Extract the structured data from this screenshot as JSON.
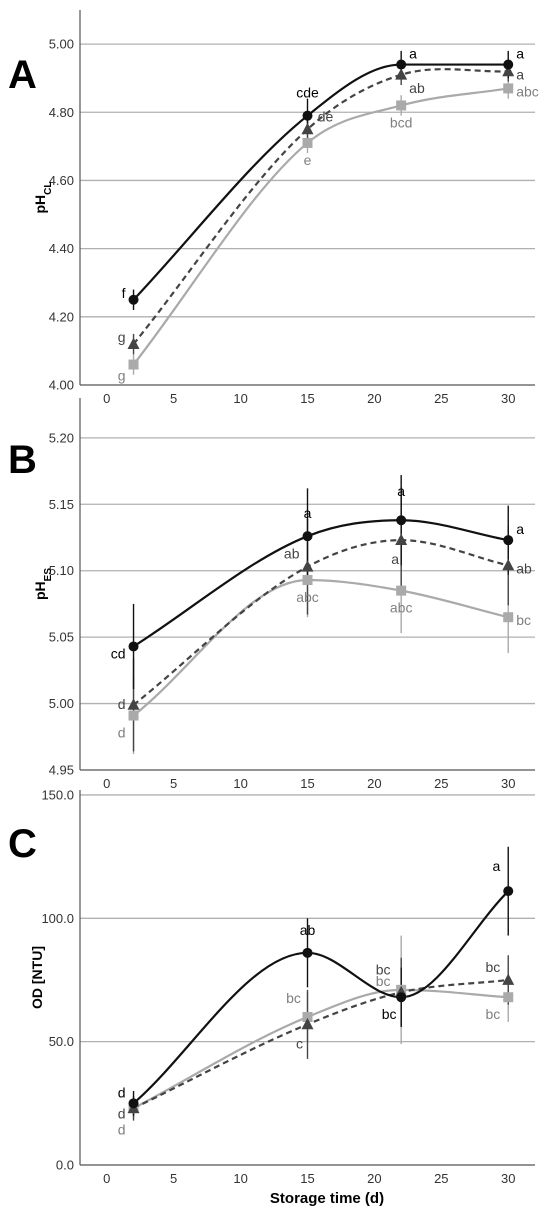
{
  "figure": {
    "xlabel": "Storage time (d)",
    "x_ticks": [
      "0",
      "5",
      "10",
      "15",
      "20",
      "25",
      "30"
    ]
  },
  "colors": {
    "series_circle": "#111111",
    "series_triangle": "#444444",
    "series_square": "#aaaaaa",
    "label_circle": "#000000",
    "label_triangle": "#444444",
    "label_square": "#808080",
    "gridline": "#b0b0b0"
  },
  "chart_data": [
    {
      "type": "line",
      "panel_label": "A",
      "ylabel": "pH",
      "ylabel_sub": "CL",
      "x": [
        2,
        15,
        22,
        30
      ],
      "xlim": [
        -2,
        32
      ],
      "ylim": [
        4.0,
        5.1
      ],
      "y_ticks": [
        "4.00",
        "4.20",
        "4.40",
        "4.60",
        "4.80",
        "5.00"
      ],
      "y_tick_values": [
        4.0,
        4.2,
        4.4,
        4.6,
        4.8,
        5.0
      ],
      "series": [
        {
          "values": [
            4.25,
            4.79,
            4.94,
            4.94
          ],
          "errors": [
            0.03,
            0.05,
            0.04,
            0.04
          ],
          "letters": [
            "f",
            "cde",
            "a",
            "a"
          ],
          "marker": "circle",
          "line_style": "solid"
        },
        {
          "values": [
            4.12,
            4.75,
            4.91,
            4.92
          ],
          "errors": [
            0.03,
            0.04,
            0.03,
            0.03
          ],
          "letters": [
            "g",
            "de",
            "ab",
            "a"
          ],
          "marker": "triangle",
          "line_style": "dashed"
        },
        {
          "values": [
            4.06,
            4.71,
            4.82,
            4.87
          ],
          "errors": [
            0.03,
            0.03,
            0.03,
            0.03
          ],
          "letters": [
            "g",
            "e",
            "bcd",
            "abc"
          ],
          "marker": "square",
          "line_style": "solid"
        }
      ]
    },
    {
      "type": "line",
      "panel_label": "B",
      "ylabel": "pH",
      "ylabel_sub": "ES",
      "x": [
        2,
        15,
        22,
        30
      ],
      "xlim": [
        -2,
        32
      ],
      "ylim": [
        4.95,
        5.23
      ],
      "y_ticks": [
        "4.95",
        "5.00",
        "5.05",
        "5.10",
        "5.15",
        "5.20"
      ],
      "y_tick_values": [
        4.95,
        5.0,
        5.05,
        5.1,
        5.15,
        5.2
      ],
      "series": [
        {
          "values": [
            5.043,
            5.126,
            5.138,
            5.123
          ],
          "errors": [
            0.032,
            0.036,
            0.034,
            0.026
          ],
          "letters": [
            "cd",
            "a",
            "a",
            "a"
          ],
          "marker": "circle",
          "line_style": "solid"
        },
        {
          "values": [
            4.999,
            5.103,
            5.123,
            5.104
          ],
          "errors": [
            0.035,
            0.036,
            0.04,
            0.03
          ],
          "letters": [
            "d",
            "ab",
            "a",
            "ab"
          ],
          "marker": "triangle",
          "line_style": "dashed"
        },
        {
          "values": [
            4.991,
            5.093,
            5.085,
            5.065
          ],
          "errors": [
            0.029,
            0.028,
            0.032,
            0.027
          ],
          "letters": [
            "d",
            "abc",
            "abc",
            "bc"
          ],
          "marker": "square",
          "line_style": "solid"
        }
      ]
    },
    {
      "type": "line",
      "panel_label": "C",
      "ylabel": "OD [NTU]",
      "x": [
        2,
        15,
        22,
        30
      ],
      "xlim": [
        -2,
        32
      ],
      "ylim": [
        0,
        152
      ],
      "y_ticks": [
        "0.0",
        "50.0",
        "100.0",
        "150.0"
      ],
      "y_tick_values": [
        0,
        50,
        100,
        150
      ],
      "series": [
        {
          "values": [
            25,
            86,
            68,
            111
          ],
          "errors": [
            5,
            14,
            12,
            18
          ],
          "letters": [
            "d",
            "ab",
            "bc",
            "a"
          ],
          "marker": "circle",
          "line_style": "solid"
        },
        {
          "values": [
            23,
            57,
            70,
            75
          ],
          "errors": [
            5,
            14,
            14,
            10
          ],
          "letters": [
            "d",
            "c",
            "bc",
            "bc"
          ],
          "marker": "triangle",
          "line_style": "dashed"
        },
        {
          "values": [
            23,
            60,
            71,
            68
          ],
          "errors": [
            4,
            10,
            22,
            10
          ],
          "letters": [
            "d",
            "bc",
            "bc",
            "bc"
          ],
          "marker": "square",
          "line_style": "solid"
        }
      ]
    }
  ]
}
